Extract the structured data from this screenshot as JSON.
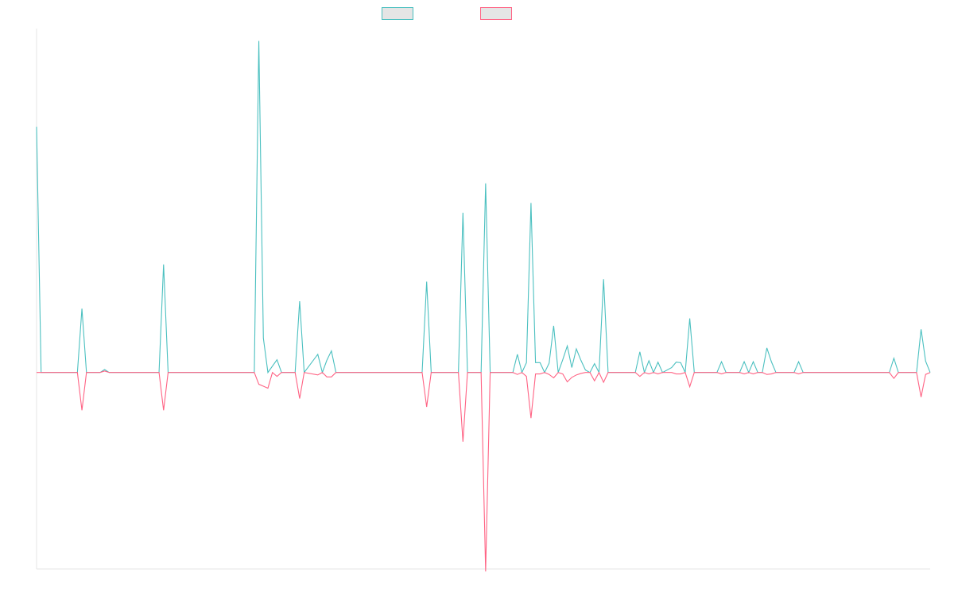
{
  "legend": {
    "series_a": {
      "name": "",
      "stroke": "#4bc0c0",
      "fill": "#e5e5e5"
    },
    "series_b": {
      "name": "",
      "stroke": "#ff6384",
      "fill": "#e5e5e5"
    }
  },
  "chart_data": {
    "type": "line",
    "title": "",
    "xlabel": "",
    "ylabel": "",
    "grid": false,
    "legend_position": "top",
    "x_count": 197,
    "ylim": [
      -40,
      70
    ],
    "series": [
      {
        "key": "a",
        "name": "",
        "color": "#4bc0c0",
        "points": [
          [
            0,
            50
          ],
          [
            1,
            0
          ],
          [
            9,
            0
          ],
          [
            10,
            13
          ],
          [
            11,
            0
          ],
          [
            14,
            0
          ],
          [
            15,
            0.6
          ],
          [
            16,
            0
          ],
          [
            27,
            0
          ],
          [
            28,
            22
          ],
          [
            29,
            0
          ],
          [
            48,
            0
          ],
          [
            49,
            67.5
          ],
          [
            50,
            7
          ],
          [
            51,
            0
          ],
          [
            53,
            2.6
          ],
          [
            54,
            0
          ],
          [
            57,
            0
          ],
          [
            58,
            14.5
          ],
          [
            59,
            0
          ],
          [
            62,
            3.7
          ],
          [
            63,
            0
          ],
          [
            64,
            2.5
          ],
          [
            65,
            4.4
          ],
          [
            66,
            0
          ],
          [
            85,
            0
          ],
          [
            86,
            18.5
          ],
          [
            87,
            0
          ],
          [
            93,
            0
          ],
          [
            94,
            32.5
          ],
          [
            95,
            0
          ],
          [
            98,
            0
          ],
          [
            99,
            38.5
          ],
          [
            100,
            0
          ],
          [
            105,
            0
          ],
          [
            106,
            3.7
          ],
          [
            107,
            0
          ],
          [
            108,
            2
          ],
          [
            109,
            34.5
          ],
          [
            110,
            2
          ],
          [
            111,
            2
          ],
          [
            112,
            0
          ],
          [
            113,
            1.9
          ],
          [
            114,
            9.5
          ],
          [
            115,
            0
          ],
          [
            116,
            2.6
          ],
          [
            117,
            5.4
          ],
          [
            118,
            1
          ],
          [
            119,
            4.8
          ],
          [
            120,
            2.5
          ],
          [
            121,
            0.5
          ],
          [
            122,
            0
          ],
          [
            123,
            1.8
          ],
          [
            124,
            0
          ],
          [
            125,
            19
          ],
          [
            126,
            0
          ],
          [
            132,
            0
          ],
          [
            133,
            4.2
          ],
          [
            134,
            0
          ],
          [
            135,
            2.4
          ],
          [
            136,
            0
          ],
          [
            137,
            2.1
          ],
          [
            138,
            0
          ],
          [
            140,
            1
          ],
          [
            141,
            2.1
          ],
          [
            142,
            2
          ],
          [
            143,
            0
          ],
          [
            144,
            11
          ],
          [
            145,
            0
          ],
          [
            150,
            0
          ],
          [
            151,
            2.2
          ],
          [
            152,
            0
          ],
          [
            155,
            0
          ],
          [
            156,
            2.2
          ],
          [
            157,
            0
          ],
          [
            158,
            2.2
          ],
          [
            159,
            0
          ],
          [
            160,
            0
          ],
          [
            161,
            5
          ],
          [
            162,
            2.2
          ],
          [
            163,
            0
          ],
          [
            167,
            0
          ],
          [
            168,
            2.2
          ],
          [
            169,
            0
          ],
          [
            188,
            0
          ],
          [
            189,
            2.9
          ],
          [
            190,
            0
          ],
          [
            194,
            0
          ],
          [
            195,
            8.8
          ],
          [
            196,
            2.3
          ],
          [
            197,
            0
          ]
        ]
      },
      {
        "key": "b",
        "name": "",
        "color": "#ff6384",
        "points": [
          [
            0,
            0
          ],
          [
            9,
            0
          ],
          [
            10,
            -7.7
          ],
          [
            11,
            0
          ],
          [
            14,
            0
          ],
          [
            15,
            0.3
          ],
          [
            16,
            0
          ],
          [
            27,
            0
          ],
          [
            28,
            -7.7
          ],
          [
            29,
            0
          ],
          [
            48,
            0
          ],
          [
            49,
            -2.4
          ],
          [
            50,
            -2.8
          ],
          [
            51,
            -3.2
          ],
          [
            52,
            0
          ],
          [
            53,
            -0.8
          ],
          [
            54,
            0
          ],
          [
            57,
            0
          ],
          [
            58,
            -5.3
          ],
          [
            59,
            0
          ],
          [
            62,
            -0.5
          ],
          [
            63,
            0
          ],
          [
            64,
            -0.9
          ],
          [
            65,
            -0.9
          ],
          [
            66,
            0
          ],
          [
            85,
            0
          ],
          [
            86,
            -7
          ],
          [
            87,
            0
          ],
          [
            93,
            0
          ],
          [
            94,
            -14.1
          ],
          [
            95,
            0
          ],
          [
            98,
            0
          ],
          [
            99,
            -40.5
          ],
          [
            100,
            0
          ],
          [
            105,
            0
          ],
          [
            106,
            -0.4
          ],
          [
            107,
            0
          ],
          [
            108,
            -0.8
          ],
          [
            109,
            -9.3
          ],
          [
            110,
            -0.3
          ],
          [
            111,
            -0.3
          ],
          [
            112,
            0
          ],
          [
            113,
            -0.4
          ],
          [
            114,
            -1.1
          ],
          [
            115,
            0
          ],
          [
            116,
            -0.3
          ],
          [
            117,
            -1.9
          ],
          [
            118,
            -1
          ],
          [
            119,
            -0.5
          ],
          [
            120,
            -0.2
          ],
          [
            121,
            0
          ],
          [
            122,
            0
          ],
          [
            123,
            -1.7
          ],
          [
            124,
            0
          ],
          [
            125,
            -2
          ],
          [
            126,
            0
          ],
          [
            132,
            0
          ],
          [
            133,
            -0.8
          ],
          [
            134,
            0
          ],
          [
            135,
            -0.3
          ],
          [
            136,
            0
          ],
          [
            137,
            -0.3
          ],
          [
            138,
            0
          ],
          [
            140,
            0
          ],
          [
            141,
            -0.3
          ],
          [
            142,
            -0.3
          ],
          [
            143,
            0
          ],
          [
            144,
            -2.9
          ],
          [
            145,
            0
          ],
          [
            150,
            0
          ],
          [
            151,
            -0.3
          ],
          [
            152,
            0
          ],
          [
            155,
            0
          ],
          [
            156,
            -0.3
          ],
          [
            157,
            0
          ],
          [
            158,
            -0.3
          ],
          [
            159,
            0
          ],
          [
            160,
            0
          ],
          [
            161,
            -0.4
          ],
          [
            162,
            -0.3
          ],
          [
            163,
            0
          ],
          [
            167,
            0
          ],
          [
            168,
            -0.3
          ],
          [
            169,
            0
          ],
          [
            188,
            0
          ],
          [
            189,
            -1.2
          ],
          [
            190,
            0
          ],
          [
            194,
            0
          ],
          [
            195,
            -5
          ],
          [
            196,
            -0.4
          ],
          [
            197,
            0
          ]
        ]
      }
    ]
  }
}
